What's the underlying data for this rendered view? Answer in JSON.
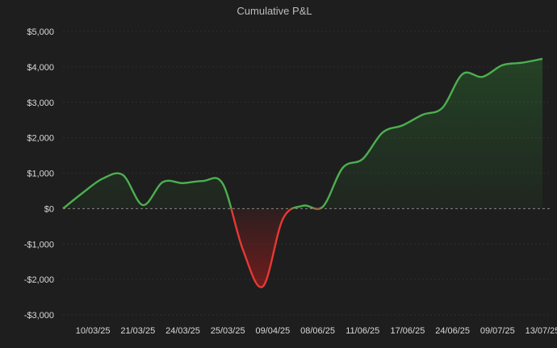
{
  "chart_data": {
    "type": "area",
    "title": "Cumulative P&L",
    "xlabel": "",
    "ylabel": "",
    "ylim": [
      -3000,
      5000
    ],
    "y_ticks": [
      5000,
      4000,
      3000,
      2000,
      1000,
      0,
      -1000,
      -2000,
      -3000
    ],
    "y_tick_labels": [
      "$5,000",
      "$4,000",
      "$3,000",
      "$2,000",
      "$1,000",
      "$0",
      "-$1,000",
      "-$2,000",
      "-$3,000"
    ],
    "x_tick_labels": [
      "10/03/25",
      "21/03/25",
      "24/03/25",
      "25/03/25",
      "09/04/25",
      "08/06/25",
      "11/06/25",
      "17/06/25",
      "24/06/25",
      "09/07/25",
      "13/07/25"
    ],
    "x_tick_index": [
      2,
      5,
      8,
      11,
      14,
      17,
      20,
      23,
      26,
      29,
      32
    ],
    "grid": true,
    "legend": "none",
    "colors": {
      "positive": "#4caf50",
      "negative": "#e53935",
      "positive_fill": "#2e7d32",
      "negative_fill": "#b71c1c"
    },
    "values": [
      0,
      450,
      850,
      950,
      100,
      750,
      720,
      780,
      700,
      -1150,
      -2200,
      -300,
      80,
      50,
      1150,
      1400,
      2150,
      2350,
      2650,
      2850,
      3800,
      3720,
      4050,
      4120,
      4230
    ]
  }
}
